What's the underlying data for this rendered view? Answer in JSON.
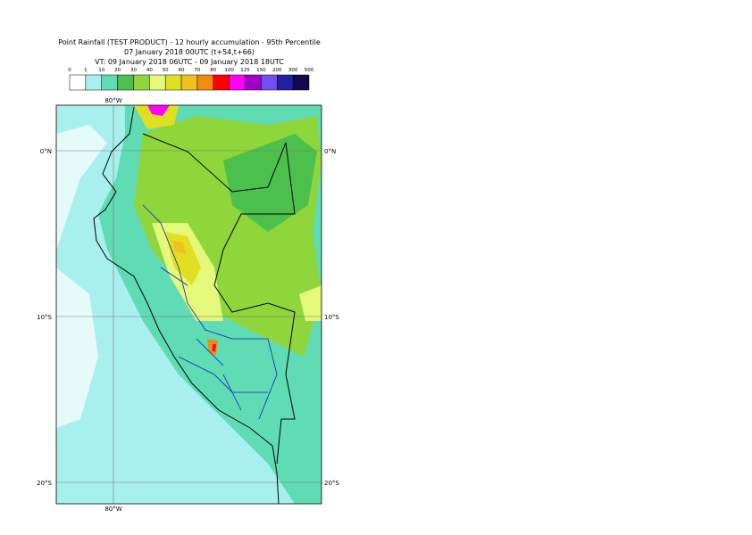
{
  "header": {
    "title": "Point Rainfall (TEST PRODUCT) - 12 hourly accumulation - 95th Percentile",
    "base_time": "07 January 2018 00UTC (t+54,t+66)",
    "valid_time": "VT: 09 January 2018 06UTC - 09 January 2018 18UTC"
  },
  "legend": {
    "labels": [
      0,
      1,
      10,
      20,
      30,
      40,
      50,
      60,
      70,
      80,
      100,
      125,
      150,
      200,
      300,
      500
    ],
    "colors": [
      "#ffffff",
      "#a8f0ee",
      "#5fdcb4",
      "#4cc04c",
      "#8fd63a",
      "#e4f87a",
      "#e0e020",
      "#f0c020",
      "#f08c10",
      "#ff0000",
      "#ff00ff",
      "#a000c8",
      "#7050f0",
      "#2020a0",
      "#100850"
    ]
  },
  "map": {
    "lon_labels": [
      "80°W"
    ],
    "lat_labels": [
      "0°N",
      "10°S",
      "20°S"
    ]
  }
}
